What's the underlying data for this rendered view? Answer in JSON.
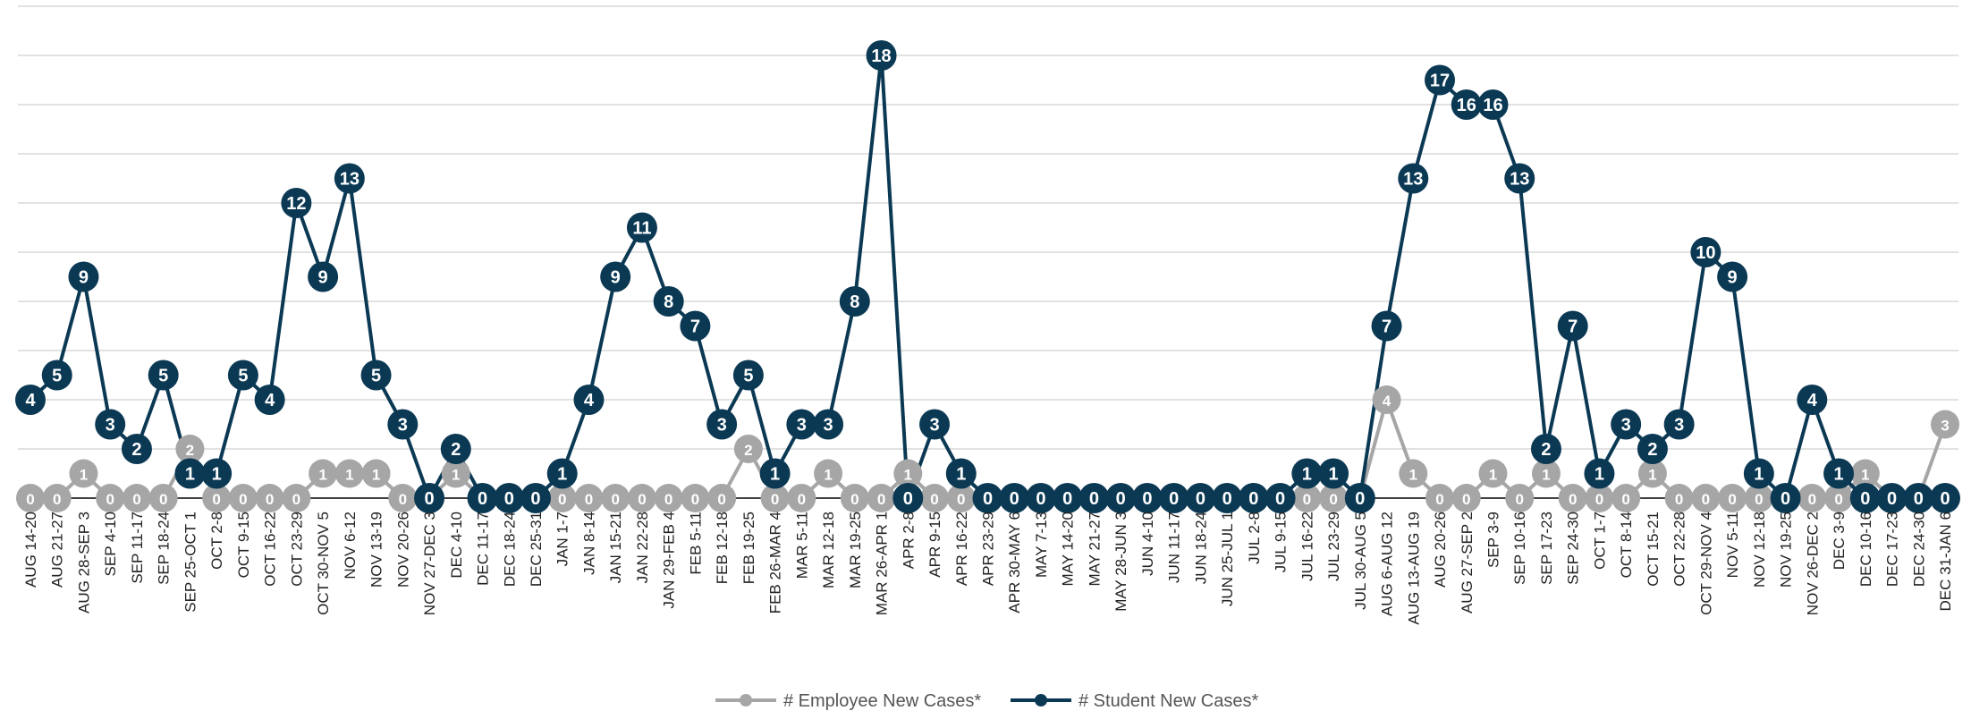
{
  "chart_data": {
    "type": "line",
    "title": "",
    "xlabel": "",
    "ylabel": "",
    "ylim": [
      0,
      18
    ],
    "grid": true,
    "legend_position": "bottom",
    "categories": [
      "AUG 14-20",
      "AUG 21-27",
      "AUG 28-SEP 3",
      "SEP 4-10",
      "SEP 11-17",
      "SEP 18-24",
      "SEP 25-OCT 1",
      "OCT 2-8",
      "OCT 9-15",
      "OCT 16-22",
      "OCT 23-29",
      "OCT 30-NOV 5",
      "NOV 6-12",
      "NOV 13-19",
      "NOV 20-26",
      "NOV 27-DEC 3",
      "DEC 4-10",
      "DEC 11-17",
      "DEC 18-24",
      "DEC 25-31",
      "JAN 1-7",
      "JAN 8-14",
      "JAN 15-21",
      "JAN 22-28",
      "JAN 29-FEB 4",
      "FEB 5-11",
      "FEB 12-18",
      "FEB 19-25",
      "FEB 26-MAR 4",
      "MAR 5-11",
      "MAR 12-18",
      "MAR 19-25",
      "MAR 26-APR 1",
      "APR 2-8",
      "APR 9-15",
      "APR 16-22",
      "APR 23-29",
      "APR 30-MAY 6",
      "MAY 7-13",
      "MAY 14-20",
      "MAY 21-27",
      "MAY 28-JUN 3",
      "JUN 4-10",
      "JUN 11-17",
      "JUN 18-24",
      "JUN 25-JUL 1",
      "JUL 2-8",
      "JUL 9-15",
      "JUL 16-22",
      "JUL 23-29",
      "JUL 30-AUG 5",
      "AUG 6-AUG 12",
      "AUG 13-AUG 19",
      "AUG 20-26",
      "AUG 27-SEP 2",
      "SEP 3-9",
      "SEP 10-16",
      "SEP 17-23",
      "SEP 24-30",
      "OCT 1-7",
      "OCT 8-14",
      "OCT 15-21",
      "OCT 22-28",
      "OCT 29-NOV 4",
      "NOV 5-11",
      "NOV 12-18",
      "NOV 19-25",
      "NOV 26-DEC 2",
      "DEC 3-9",
      "DEC 10-16",
      "DEC 17-23",
      "DEC 24-30",
      "DEC 31-JAN 6"
    ],
    "series": [
      {
        "name": "# Employee New Cases*",
        "color": "#a6a6a6",
        "values": [
          0,
          0,
          1,
          0,
          0,
          0,
          2,
          0,
          0,
          0,
          0,
          1,
          1,
          1,
          0,
          0,
          1,
          0,
          0,
          0,
          0,
          0,
          0,
          0,
          0,
          0,
          0,
          2,
          0,
          0,
          1,
          0,
          0,
          1,
          0,
          0,
          0,
          0,
          0,
          0,
          0,
          0,
          0,
          0,
          0,
          0,
          0,
          0,
          0,
          0,
          0,
          4,
          1,
          0,
          0,
          1,
          0,
          1,
          0,
          0,
          0,
          1,
          0,
          0,
          0,
          0,
          0,
          0,
          0,
          1,
          0,
          0,
          3
        ]
      },
      {
        "name": "# Student New Cases*",
        "color": "#0b3954",
        "values": [
          4,
          5,
          9,
          3,
          2,
          5,
          1,
          1,
          5,
          4,
          12,
          9,
          13,
          5,
          3,
          0,
          2,
          0,
          0,
          0,
          1,
          4,
          9,
          11,
          8,
          7,
          3,
          5,
          1,
          3,
          3,
          8,
          18,
          0,
          3,
          1,
          0,
          0,
          0,
          0,
          0,
          0,
          0,
          0,
          0,
          0,
          0,
          0,
          1,
          1,
          0,
          7,
          13,
          17,
          16,
          16,
          13,
          2,
          7,
          1,
          3,
          2,
          3,
          10,
          9,
          1,
          0,
          4,
          1,
          0,
          0,
          0,
          0
        ]
      }
    ]
  }
}
